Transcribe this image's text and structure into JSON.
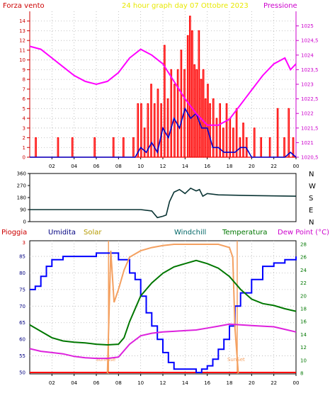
{
  "colors": {
    "wind": "#ff0000",
    "gust": "#0000cc",
    "pressure": "#ff00ff",
    "grid": "#b4b4b4",
    "rain": "#ff0000",
    "humidity": "#0000ff",
    "solar": "#f4a060",
    "temperature": "#007700",
    "dewpoint": "#dd22dd",
    "windchill": "#006666",
    "direction": "#0a3434",
    "frame": "#000000",
    "title": "#e8e800",
    "yellowish": "#b59a00"
  },
  "header": {
    "left": "Forza vento",
    "title": "24 hour graph day   07 Ottobre 2023",
    "right": "Pressione"
  },
  "bottom_header": {
    "rain": "Pioggia",
    "humidity": "Umidita",
    "solar": "Solar",
    "windchill": "Windchill",
    "temperature": "Temperatura",
    "dewpoint": "Dew Point (°C)"
  },
  "hour_ticks": [
    "02",
    "04",
    "06",
    "08",
    "10",
    "12",
    "14",
    "16",
    "18",
    "20",
    "22",
    "00"
  ],
  "sun_labels": {
    "sunrise": "SunRise",
    "sunset": "SunSet"
  },
  "chart_data": [
    {
      "type": "line",
      "title": "24 hour graph day   07 Ottobre 2023",
      "ylabel": "Forza vento",
      "y2label": "Pressione",
      "ylim": [
        0,
        15
      ],
      "y2lim": [
        1020.5,
        1025.5
      ],
      "yticks": [
        "0",
        "1",
        "2",
        "3",
        "4",
        "5",
        "6",
        "7",
        "8",
        "9",
        "10",
        "11",
        "12",
        "13",
        "14"
      ],
      "y2ticks": [
        "1020,5",
        "1021",
        "1021,5",
        "1022",
        "1022,5",
        "1023",
        "1023,5",
        "1024",
        "1024,5",
        "1025"
      ],
      "series": [
        {
          "name": "",
          "axis": "left",
          "x": [
            0,
            2,
            4,
            6,
            7,
            8,
            9,
            9.5,
            10,
            10.5,
            11,
            11.5,
            12,
            12.5,
            13,
            13.5,
            14,
            14.5,
            15,
            15.5,
            16,
            16.5,
            17,
            17.5,
            18,
            18.5,
            19,
            19.5,
            20,
            20.5,
            21,
            22,
            23,
            23.5,
            24
          ],
          "values": [
            0,
            0,
            0,
            0,
            0,
            0,
            0,
            0,
            1,
            0.5,
            1.5,
            0.5,
            3,
            2,
            4,
            3,
            5,
            4,
            4.5,
            3,
            3,
            1,
            1,
            0.5,
            0.5,
            0.5,
            1,
            1,
            0,
            0,
            0,
            0,
            0,
            0.5,
            0
          ]
        },
        {
          "name": "",
          "axis": "right",
          "x": [
            0,
            1,
            2,
            3,
            4,
            5,
            6,
            7,
            8,
            9,
            10,
            11,
            12,
            13,
            14,
            15,
            16,
            17,
            18,
            19,
            20,
            21,
            22,
            23,
            23.5,
            24
          ],
          "values": [
            1024.3,
            1024.2,
            1023.9,
            1023.6,
            1023.3,
            1023.1,
            1023.0,
            1023.1,
            1023.4,
            1023.9,
            1024.2,
            1024.0,
            1023.7,
            1023.1,
            1022.5,
            1022.0,
            1021.6,
            1021.6,
            1021.8,
            1022.3,
            1022.8,
            1023.3,
            1023.7,
            1023.9,
            1023.5,
            1023.7
          ]
        }
      ],
      "gust_spikes": [
        {
          "x": 0.5,
          "v": 2
        },
        {
          "x": 2.5,
          "v": 2
        },
        {
          "x": 3.8,
          "v": 2
        },
        {
          "x": 5.8,
          "v": 2
        },
        {
          "x": 7.5,
          "v": 2
        },
        {
          "x": 8.4,
          "v": 2
        },
        {
          "x": 9.3,
          "v": 2
        },
        {
          "x": 9.7,
          "v": 5.5
        },
        {
          "x": 10.0,
          "v": 5.5
        },
        {
          "x": 10.3,
          "v": 3
        },
        {
          "x": 10.6,
          "v": 5.5
        },
        {
          "x": 10.9,
          "v": 7.5
        },
        {
          "x": 11.2,
          "v": 5.5
        },
        {
          "x": 11.5,
          "v": 7
        },
        {
          "x": 11.8,
          "v": 5.5
        },
        {
          "x": 12.1,
          "v": 11.5
        },
        {
          "x": 12.4,
          "v": 6
        },
        {
          "x": 12.7,
          "v": 9
        },
        {
          "x": 13.0,
          "v": 7.5
        },
        {
          "x": 13.3,
          "v": 9
        },
        {
          "x": 13.6,
          "v": 11
        },
        {
          "x": 13.9,
          "v": 9
        },
        {
          "x": 14.2,
          "v": 12.5
        },
        {
          "x": 14.4,
          "v": 14.5
        },
        {
          "x": 14.6,
          "v": 13
        },
        {
          "x": 14.8,
          "v": 9.5
        },
        {
          "x": 15.0,
          "v": 9
        },
        {
          "x": 15.2,
          "v": 13
        },
        {
          "x": 15.4,
          "v": 8
        },
        {
          "x": 15.6,
          "v": 9
        },
        {
          "x": 15.8,
          "v": 6
        },
        {
          "x": 16.0,
          "v": 7.5
        },
        {
          "x": 16.2,
          "v": 5.5
        },
        {
          "x": 16.5,
          "v": 6
        },
        {
          "x": 16.8,
          "v": 4
        },
        {
          "x": 17.1,
          "v": 5.5
        },
        {
          "x": 17.4,
          "v": 3
        },
        {
          "x": 17.7,
          "v": 5.5
        },
        {
          "x": 18.0,
          "v": 4
        },
        {
          "x": 18.3,
          "v": 3
        },
        {
          "x": 18.6,
          "v": 5
        },
        {
          "x": 18.9,
          "v": 2
        },
        {
          "x": 19.2,
          "v": 3.5
        },
        {
          "x": 19.5,
          "v": 2
        },
        {
          "x": 20.2,
          "v": 3
        },
        {
          "x": 20.8,
          "v": 2
        },
        {
          "x": 21.6,
          "v": 2
        },
        {
          "x": 22.3,
          "v": 5
        },
        {
          "x": 22.9,
          "v": 2
        },
        {
          "x": 23.3,
          "v": 5
        },
        {
          "x": 23.7,
          "v": 2
        }
      ]
    },
    {
      "type": "line",
      "ylim": [
        0,
        360
      ],
      "yticks": [
        "0",
        "90",
        "180",
        "270",
        "360"
      ],
      "y2ticks": [
        "N",
        "W",
        "S",
        "E",
        "N"
      ],
      "series": [
        {
          "name": "",
          "x": [
            0,
            4,
            8,
            10,
            11,
            11.5,
            12,
            12.3,
            12.6,
            13,
            13.5,
            14,
            14.5,
            15,
            15.3,
            15.6,
            16,
            17,
            20,
            24
          ],
          "values": [
            90,
            90,
            90,
            90,
            80,
            30,
            40,
            50,
            150,
            220,
            240,
            210,
            250,
            230,
            240,
            190,
            210,
            200,
            195,
            190
          ]
        }
      ]
    },
    {
      "type": "line",
      "ylim": [
        50,
        90
      ],
      "y2lim": [
        8,
        28
      ],
      "yticks": [
        "50",
        "55",
        "60",
        "65",
        "70",
        "75",
        "80",
        "85"
      ],
      "y2ticks": [
        "8",
        "10",
        "12",
        "14",
        "16",
        "18",
        "20",
        "22",
        "24",
        "26",
        "28"
      ],
      "series": [
        {
          "name": "Umidita",
          "axis": "left",
          "x": [
            0,
            0.5,
            1,
            1.5,
            2,
            3,
            4,
            5,
            6,
            7,
            7.5,
            8,
            9,
            9.5,
            10,
            10.5,
            11,
            11.5,
            12,
            12.5,
            13,
            14,
            15,
            15.5,
            16,
            16.5,
            17,
            17.5,
            18,
            18.5,
            19,
            20,
            21,
            22,
            23,
            24
          ],
          "values": [
            75,
            76,
            79,
            82,
            84,
            85,
            85,
            85,
            86,
            86,
            86,
            84,
            80,
            78,
            73,
            68,
            64,
            60,
            56,
            53,
            51,
            51,
            50,
            51,
            52,
            54,
            57,
            60,
            64,
            70,
            74,
            78,
            82,
            83,
            84,
            85
          ]
        },
        {
          "name": "Solar",
          "axis": "right",
          "x": [
            7,
            7.3,
            7.6,
            8,
            8.5,
            9,
            9.5,
            10,
            11,
            12,
            13,
            14,
            15,
            16,
            17,
            18,
            18.3,
            18.5,
            18.8
          ],
          "values": [
            8,
            27,
            19,
            21,
            24,
            26,
            26.5,
            27,
            27.5,
            27.8,
            28,
            28,
            28,
            28,
            28,
            27.5,
            26,
            15,
            8
          ]
        },
        {
          "name": "Temperatura",
          "axis": "right",
          "x": [
            0,
            1,
            2,
            3,
            4,
            5,
            6,
            7,
            8,
            8.5,
            9,
            10,
            11,
            12,
            13,
            14,
            15,
            16,
            17,
            18,
            19,
            20,
            21,
            22,
            23,
            24
          ],
          "values": [
            15.5,
            14.5,
            13.5,
            13,
            12.8,
            12.7,
            12.5,
            12.4,
            12.5,
            13.5,
            16,
            20,
            22,
            23.5,
            24.5,
            25,
            25.5,
            25,
            24.3,
            23,
            21,
            19.5,
            18.8,
            18.5,
            18,
            17.6
          ]
        },
        {
          "name": "Dew Point (°C)",
          "axis": "right",
          "x": [
            0,
            1,
            2,
            3,
            4,
            5,
            6,
            7,
            8,
            9,
            10,
            11,
            12,
            13,
            14,
            15,
            16,
            17,
            18,
            19,
            20,
            21,
            22,
            23,
            24
          ],
          "values": [
            11.8,
            11.4,
            11.2,
            11.0,
            10.6,
            10.4,
            10.3,
            10.3,
            10.5,
            12.5,
            13.8,
            14.2,
            14.4,
            14.5,
            14.6,
            14.7,
            15.0,
            15.3,
            15.6,
            15.5,
            15.4,
            15.3,
            15.2,
            14.8,
            14.4
          ]
        }
      ]
    }
  ]
}
